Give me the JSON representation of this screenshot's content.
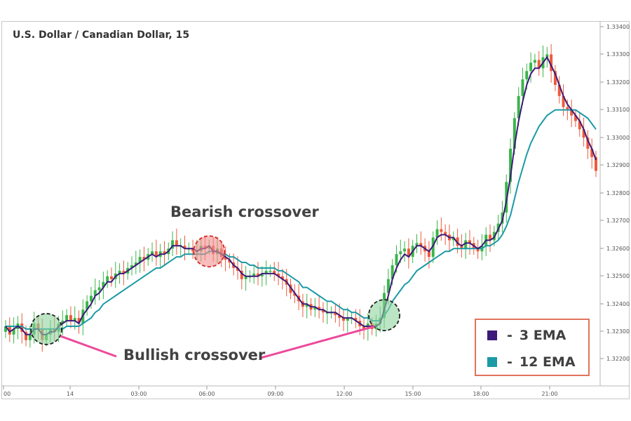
{
  "title": "U.S. Dollar / Canadian Dollar, 15",
  "annotations": {
    "bearish": "Bearish crossover",
    "bullish": "Bullish crossover"
  },
  "legend": {
    "items": [
      {
        "label": "3 EMA",
        "color": "#3d1a7a"
      },
      {
        "label": "12 EMA",
        "color": "#1b9aa6"
      }
    ]
  },
  "colors": {
    "up": "#39b54a",
    "down": "#ee5a3b",
    "ema3": "#3d1a7a",
    "ema12": "#1b9aa6",
    "bull_circle": "#8dd39d",
    "bear_circle": "#f29090",
    "arrow": "#ec4a9a"
  },
  "chart_data": {
    "type": "candlestick",
    "title": "U.S. Dollar / Canadian Dollar, 15",
    "x_ticks": [
      "00",
      "14",
      "03:00",
      "06:00",
      "09:00",
      "12:00",
      "15:00",
      "18:00",
      "21:00"
    ],
    "y_ticks": [
      "1.33400",
      "1.33300",
      "1.33200",
      "1.33100",
      "1.33000",
      "1.32900",
      "1.32800",
      "1.32700",
      "1.32600",
      "1.32500",
      "1.32400",
      "1.32300",
      "1.32200"
    ],
    "ylim": [
      1.3214,
      1.3343
    ],
    "close": [
      1.3235,
      1.3232,
      1.3234,
      1.3236,
      1.3233,
      1.323,
      1.3232,
      1.3236,
      1.3234,
      1.323,
      1.3232,
      1.3234,
      1.3233,
      1.3236,
      1.3237,
      1.3239,
      1.3237,
      1.3238,
      1.3236,
      1.3241,
      1.3244,
      1.3246,
      1.3248,
      1.3249,
      1.3251,
      1.3253,
      1.3252,
      1.3254,
      1.3255,
      1.3254,
      1.3256,
      1.3257,
      1.3258,
      1.326,
      1.3259,
      1.3261,
      1.3262,
      1.326,
      1.3262,
      1.3261,
      1.3263,
      1.3266,
      1.3264,
      1.3264,
      1.3263,
      1.3263,
      1.3262,
      1.3262,
      1.3264,
      1.3263,
      1.3264,
      1.3261,
      1.3263,
      1.326,
      1.3259,
      1.3258,
      1.3256,
      1.3255,
      1.3252,
      1.3253,
      1.3253,
      1.3254,
      1.3253,
      1.3254,
      1.3255,
      1.3255,
      1.3254,
      1.3253,
      1.3252,
      1.325,
      1.3247,
      1.3246,
      1.3244,
      1.3242,
      1.3243,
      1.3241,
      1.3242,
      1.3241,
      1.324,
      1.324,
      1.324,
      1.3239,
      1.3238,
      1.3237,
      1.3238,
      1.3238,
      1.3237,
      1.3235,
      1.3234,
      1.3236,
      1.3234,
      1.3236,
      1.3238,
      1.3247,
      1.3252,
      1.3257,
      1.3261,
      1.3262,
      1.3263,
      1.326,
      1.3264,
      1.3265,
      1.3264,
      1.3262,
      1.326,
      1.3267,
      1.327,
      1.3269,
      1.3268,
      1.3266,
      1.3267,
      1.3264,
      1.3263,
      1.3266,
      1.3265,
      1.3263,
      1.3262,
      1.3264,
      1.3268,
      1.3266,
      1.3269,
      1.3272,
      1.3276,
      1.3287,
      1.3299,
      1.331,
      1.3318,
      1.3324,
      1.3327,
      1.333,
      1.3331,
      1.3328,
      1.3332,
      1.3333,
      1.3327,
      1.3322,
      1.3318,
      1.3314,
      1.3313,
      1.3311,
      1.3309,
      1.3306,
      1.3303,
      1.3299,
      1.3296,
      1.3291
    ],
    "series": [
      {
        "name": "3 EMA",
        "values": [
          1.3235,
          1.3233,
          1.3234,
          1.3235,
          1.3234,
          1.3232,
          1.3232,
          1.3234,
          1.3234,
          1.3232,
          1.3232,
          1.3233,
          1.3233,
          1.3235,
          1.3236,
          1.3237,
          1.3237,
          1.3237,
          1.3236,
          1.3239,
          1.3241,
          1.3243,
          1.3246,
          1.3247,
          1.3249,
          1.3251,
          1.3251,
          1.3253,
          1.3254,
          1.3254,
          1.3255,
          1.3256,
          1.3257,
          1.3258,
          1.3259,
          1.326,
          1.3261,
          1.326,
          1.3261,
          1.3261,
          1.3262,
          1.3264,
          1.3264,
          1.3264,
          1.3263,
          1.3263,
          1.3263,
          1.3262,
          1.3263,
          1.3263,
          1.3264,
          1.3262,
          1.3262,
          1.3261,
          1.326,
          1.3259,
          1.3257,
          1.3256,
          1.3254,
          1.3253,
          1.3253,
          1.3253,
          1.3253,
          1.3254,
          1.3254,
          1.3254,
          1.3254,
          1.3253,
          1.3252,
          1.3251,
          1.3249,
          1.3247,
          1.3245,
          1.3243,
          1.3243,
          1.3242,
          1.3242,
          1.3241,
          1.3241,
          1.324,
          1.324,
          1.324,
          1.3239,
          1.3238,
          1.3238,
          1.3238,
          1.3237,
          1.3236,
          1.3235,
          1.3235,
          1.3235,
          1.3235,
          1.3236,
          1.3241,
          1.3246,
          1.3252,
          1.3256,
          1.3259,
          1.3261,
          1.326,
          1.3262,
          1.3264,
          1.3264,
          1.3263,
          1.3262,
          1.3264,
          1.3267,
          1.3268,
          1.3268,
          1.3267,
          1.3267,
          1.3265,
          1.3264,
          1.3265,
          1.3265,
          1.3264,
          1.3263,
          1.3264,
          1.3266,
          1.3266,
          1.3267,
          1.327,
          1.3273,
          1.328,
          1.3289,
          1.33,
          1.3309,
          1.3316,
          1.3322,
          1.3326,
          1.3328,
          1.3328,
          1.333,
          1.3332,
          1.3329,
          1.3326,
          1.3322,
          1.3318,
          1.3315,
          1.3313,
          1.3311,
          1.3309,
          1.3306,
          1.3302,
          1.3299,
          1.3295
        ]
      },
      {
        "name": "12 EMA",
        "values": [
          1.3235,
          1.3235,
          1.3235,
          1.3235,
          1.3235,
          1.3234,
          1.3234,
          1.3234,
          1.3234,
          1.3234,
          1.3234,
          1.3234,
          1.3234,
          1.3234,
          1.3234,
          1.3235,
          1.3235,
          1.3235,
          1.3235,
          1.3236,
          1.3237,
          1.3238,
          1.324,
          1.3241,
          1.3243,
          1.3244,
          1.3245,
          1.3246,
          1.3247,
          1.3248,
          1.3249,
          1.325,
          1.3251,
          1.3252,
          1.3253,
          1.3254,
          1.3255,
          1.3256,
          1.3256,
          1.3257,
          1.3258,
          1.3259,
          1.326,
          1.326,
          1.3261,
          1.3261,
          1.3261,
          1.3261,
          1.3261,
          1.3261,
          1.3262,
          1.3262,
          1.3262,
          1.3261,
          1.3261,
          1.326,
          1.326,
          1.3259,
          1.3258,
          1.3258,
          1.3257,
          1.3257,
          1.3256,
          1.3256,
          1.3256,
          1.3256,
          1.3256,
          1.3255,
          1.3255,
          1.3254,
          1.3253,
          1.3252,
          1.3251,
          1.3249,
          1.3249,
          1.3248,
          1.3247,
          1.3246,
          1.3245,
          1.3244,
          1.3244,
          1.3243,
          1.3242,
          1.3241,
          1.3241,
          1.324,
          1.324,
          1.3239,
          1.3238,
          1.3238,
          1.3237,
          1.3237,
          1.3237,
          1.3239,
          1.3241,
          1.3244,
          1.3246,
          1.3248,
          1.325,
          1.3251,
          1.3253,
          1.3255,
          1.3256,
          1.3257,
          1.3258,
          1.3259,
          1.326,
          1.3261,
          1.3262,
          1.3262,
          1.3263,
          1.3263,
          1.3263,
          1.3263,
          1.3263,
          1.3263,
          1.3263,
          1.3263,
          1.3264,
          1.3264,
          1.3265,
          1.3266,
          1.3268,
          1.3271,
          1.3275,
          1.3281,
          1.3287,
          1.3292,
          1.3297,
          1.3301,
          1.3304,
          1.3307,
          1.3309,
          1.3311,
          1.3312,
          1.3313,
          1.3313,
          1.3313,
          1.3313,
          1.3313,
          1.3313,
          1.3312,
          1.3311,
          1.331,
          1.3308,
          1.3306
        ]
      }
    ],
    "highlights": [
      {
        "type": "bullish",
        "index": 10
      },
      {
        "type": "bearish",
        "index": 50
      },
      {
        "type": "bullish",
        "index": 93
      }
    ],
    "grid": false,
    "legend_position": "bottom-right"
  }
}
